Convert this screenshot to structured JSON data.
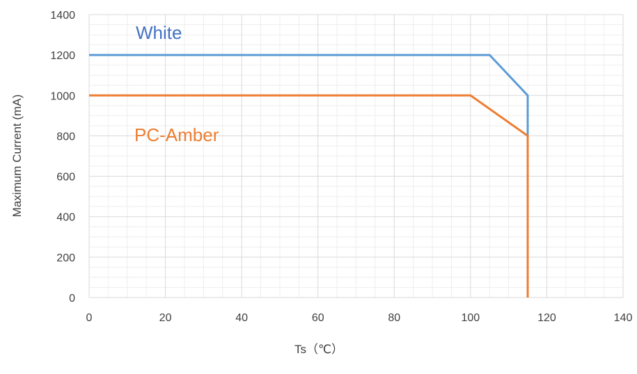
{
  "chart_data": {
    "type": "line",
    "title": "",
    "xlabel": "Ts（℃）",
    "ylabel": "Maximum Current (mA)",
    "xlim": [
      0,
      140
    ],
    "ylim": [
      0,
      1400
    ],
    "x_ticks": [
      0,
      20,
      40,
      60,
      80,
      100,
      120,
      140
    ],
    "y_ticks": [
      0,
      200,
      400,
      600,
      800,
      1000,
      1200,
      1400
    ],
    "x_minor_step": 5,
    "y_minor_step": 50,
    "grid": true,
    "series": [
      {
        "name": "White",
        "color": "#5b9bd5",
        "label_color": "#4472c4",
        "points": [
          [
            0,
            1200
          ],
          [
            105,
            1200
          ],
          [
            115,
            1000
          ],
          [
            115,
            800
          ]
        ]
      },
      {
        "name": "PC-Amber",
        "color": "#ed7d31",
        "label_color": "#ed7d31",
        "points": [
          [
            0,
            1000
          ],
          [
            100,
            1000
          ],
          [
            115,
            800
          ],
          [
            115,
            0
          ]
        ]
      }
    ]
  }
}
